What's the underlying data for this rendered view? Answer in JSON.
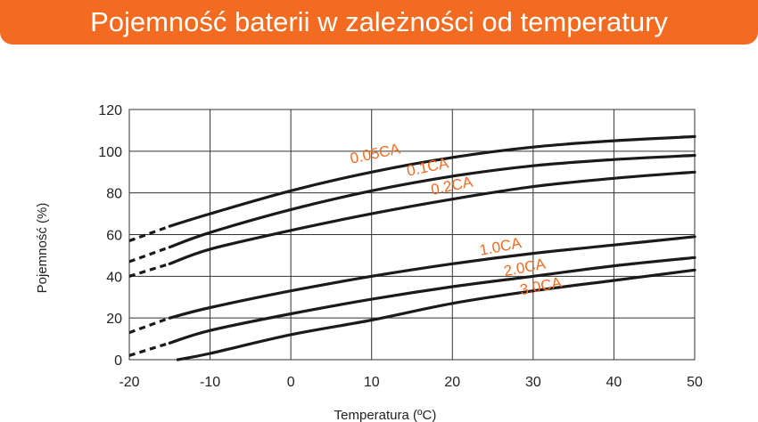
{
  "chart_data": {
    "type": "line",
    "title": "Pojemność baterii w zależności od temperatury",
    "xlabel": "Temperatura (ºC)",
    "ylabel": "Pojemność (%)",
    "xlim": [
      -20,
      50
    ],
    "ylim": [
      0,
      120
    ],
    "x_ticks": [
      "-20",
      "-10",
      "0",
      "10",
      "20",
      "30",
      "40",
      "50"
    ],
    "y_ticks": [
      "0",
      "20",
      "40",
      "60",
      "80",
      "100",
      "120"
    ],
    "grid": true,
    "series": [
      {
        "name": "0.05CA",
        "x": [
          -20,
          -15,
          -10,
          0,
          10,
          20,
          30,
          40,
          50
        ],
        "y": [
          57,
          64,
          70,
          81,
          90,
          97,
          102,
          105,
          107
        ],
        "dashed_below_x": -15
      },
      {
        "name": "0.1CA",
        "x": [
          -20,
          -15,
          -10,
          0,
          10,
          20,
          30,
          40,
          50
        ],
        "y": [
          47,
          54,
          61,
          72,
          81,
          88,
          93,
          96,
          98
        ],
        "dashed_below_x": -15
      },
      {
        "name": "0.2CA",
        "x": [
          -20,
          -15,
          -10,
          0,
          10,
          20,
          30,
          40,
          50
        ],
        "y": [
          40,
          46,
          53,
          62,
          70,
          77,
          83,
          87,
          90
        ],
        "dashed_below_x": -15
      },
      {
        "name": "1.0CA",
        "x": [
          -20,
          -15,
          -10,
          0,
          10,
          20,
          30,
          40,
          50
        ],
        "y": [
          13,
          20,
          25,
          33,
          40,
          46,
          51,
          55,
          59
        ],
        "dashed_below_x": -15
      },
      {
        "name": "2.0CA",
        "x": [
          -20,
          -15,
          -10,
          0,
          10,
          20,
          30,
          40,
          50
        ],
        "y": [
          2,
          8,
          14,
          22,
          29,
          35,
          40,
          45,
          49
        ],
        "dashed_below_x": -15
      },
      {
        "name": "3.0CA",
        "x": [
          -14,
          -10,
          0,
          10,
          20,
          30,
          40,
          50
        ],
        "y": [
          0,
          3,
          12,
          19,
          27,
          33,
          38,
          43
        ]
      }
    ]
  }
}
